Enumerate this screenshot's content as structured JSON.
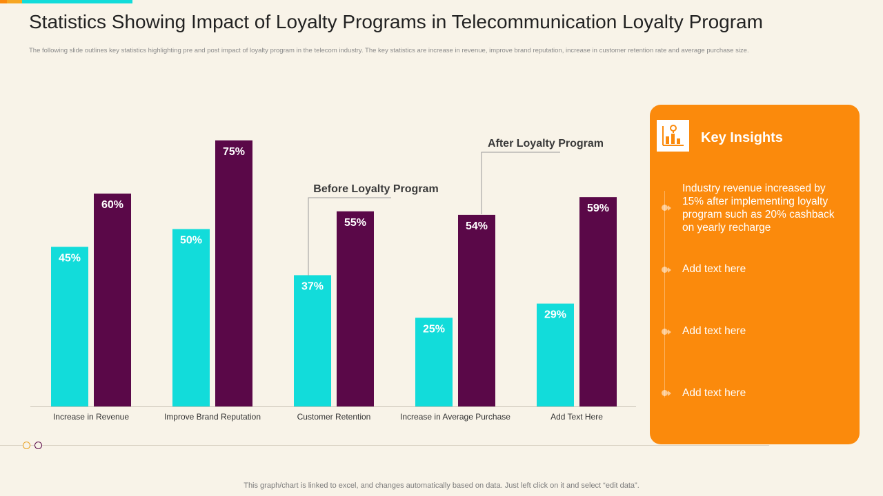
{
  "header": {
    "title": "Statistics Showing Impact of Loyalty Programs in Telecommunication Loyalty Program",
    "subtitle": "The following slide outlines key statistics highlighting pre and post impact of loyalty program in the telecom industry. The key statistics are increase in revenue, improve brand reputation, increase in customer retention rate and average purchase size."
  },
  "colors": {
    "before": "#12dcda",
    "after": "#5a0848",
    "accent_orange": "#fb8a0c",
    "accent_yellow": "#f6a623",
    "accent_teal": "#12dcda"
  },
  "chart_data": {
    "type": "bar",
    "categories": [
      "Increase in Revenue",
      "Improve Brand Reputation",
      "Customer Retention",
      "Increase in Average Purchase",
      "Add Text Here"
    ],
    "series": [
      {
        "name": "Before Loyalty Program",
        "values": [
          45,
          50,
          37,
          25,
          29
        ],
        "labels": [
          "45%",
          "50%",
          "37%",
          "25%",
          "29%"
        ]
      },
      {
        "name": "After Loyalty Program",
        "values": [
          60,
          75,
          55,
          54,
          59
        ],
        "labels": [
          "60%",
          "75%",
          "55%",
          "54%",
          "59%"
        ]
      }
    ],
    "ylim": [
      0,
      100
    ],
    "grid": false,
    "annotations": [
      {
        "text": "Before Loyalty Program",
        "series": 0,
        "category": 2
      },
      {
        "text": "After Loyalty Program",
        "series": 1,
        "category": 3
      }
    ]
  },
  "panel": {
    "title": "Key Insights",
    "icon": "chart-icon",
    "items": [
      "Industry  revenue increased by 15% after implementing loyalty program such as 20% cashback on yearly recharge",
      "Add text here",
      "Add text here",
      "Add text here"
    ]
  },
  "footer": {
    "note": "This graph/chart is linked to excel,  and changes automatically based on data. Just left click on it and select “edit data”."
  }
}
